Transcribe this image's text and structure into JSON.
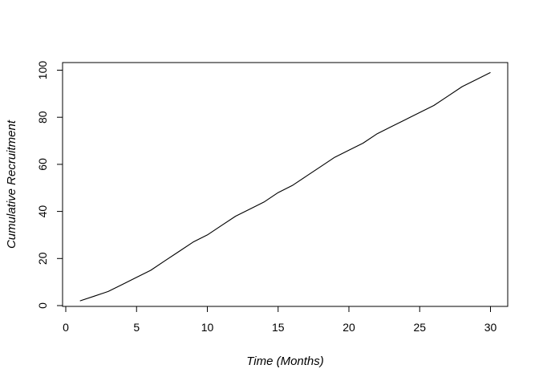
{
  "chart_data": {
    "type": "line",
    "title": "",
    "xlabel": "Time (Months)",
    "ylabel": "Cumulative Recruitment",
    "x_ticks": [
      0,
      5,
      10,
      15,
      20,
      25,
      30
    ],
    "y_ticks": [
      0,
      20,
      40,
      60,
      80,
      100
    ],
    "xlim": [
      0,
      31
    ],
    "ylim": [
      0,
      103
    ],
    "grid": false,
    "legend": "none",
    "line_color": "#000000",
    "axis_color": "#000000",
    "background_color": "#ffffff",
    "x": [
      1,
      2,
      3,
      4,
      5,
      6,
      7,
      8,
      9,
      10,
      11,
      12,
      13,
      14,
      15,
      16,
      17,
      18,
      19,
      20,
      21,
      22,
      23,
      24,
      25,
      26,
      27,
      28,
      29,
      30
    ],
    "values": [
      2,
      4,
      6,
      9,
      12,
      15,
      19,
      23,
      27,
      30,
      34,
      38,
      41,
      44,
      48,
      51,
      55,
      59,
      63,
      66,
      69,
      73,
      76,
      79,
      82,
      85,
      89,
      93,
      96,
      99
    ]
  }
}
